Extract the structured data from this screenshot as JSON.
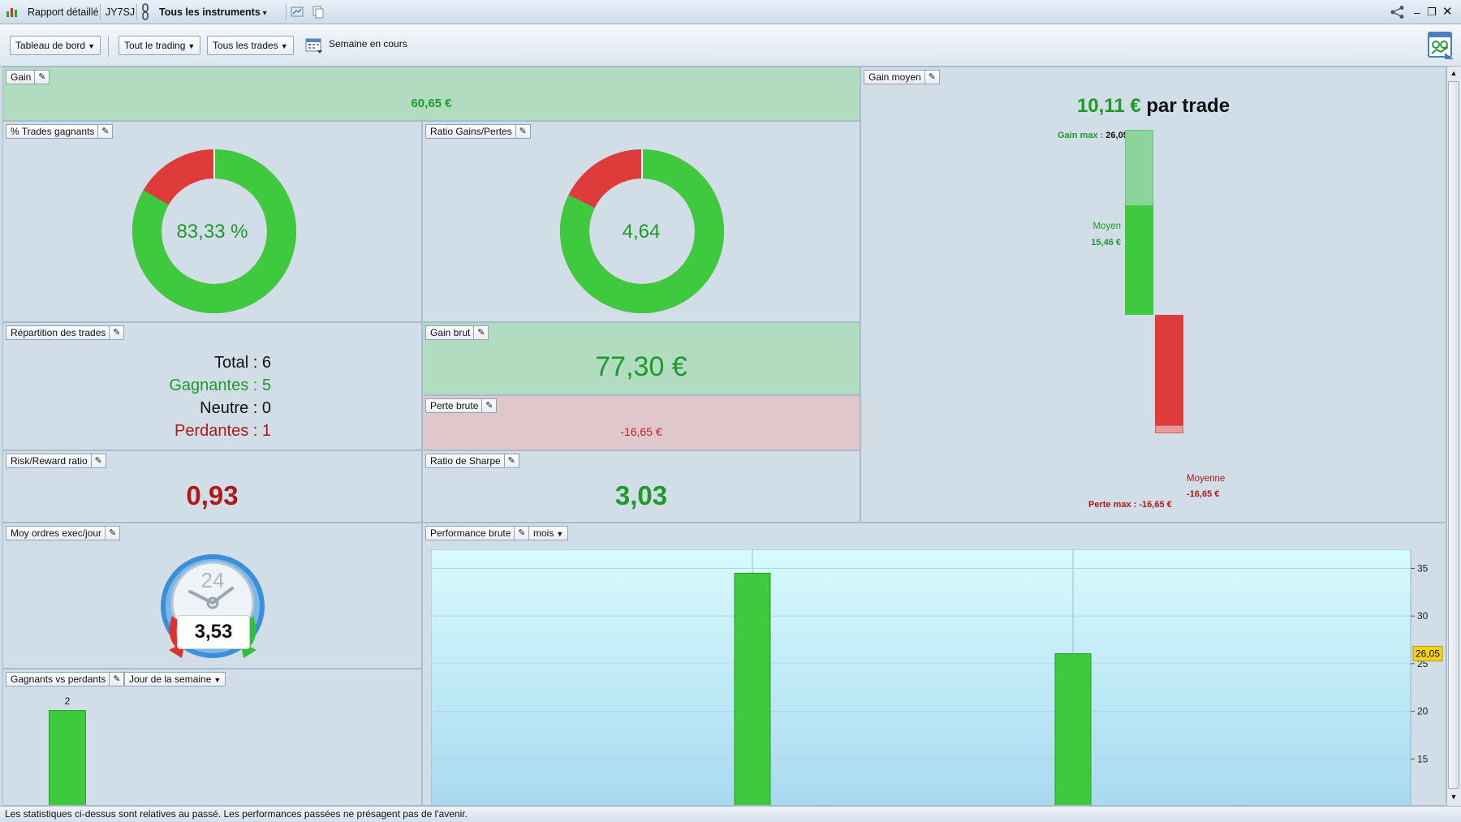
{
  "titlebar": {
    "report": "Rapport détaillé",
    "account": "JY7SJ",
    "instruments": "Tous les instruments"
  },
  "toolbar": {
    "dashboard": "Tableau de bord",
    "all_trading": "Tout le trading",
    "all_trades": "Tous les trades",
    "period": "Semaine en cours"
  },
  "gain": {
    "title": "Gain",
    "value": "60,65 €"
  },
  "win_pct": {
    "title": "% Trades gagnants",
    "value": "83,33 %",
    "fraction": 0.8333
  },
  "ratio": {
    "title": "Ratio Gains/Pertes",
    "value": "4,64",
    "fraction": 0.823
  },
  "avg_gain": {
    "title": "Gain moyen",
    "value": "10,11 €",
    "suffix": " par trade",
    "gain_max_label": "Gain max : ",
    "gain_max": "26,05 €",
    "avg_label": "Moyen",
    "avg_value": "15,46 €",
    "loss_avg_label": "Moyenne",
    "loss_avg_value": "-16,65 €",
    "loss_max_label": "Perte max : ",
    "loss_max": "-16,65 €",
    "gain_max_num": 26.05,
    "gain_avg_num": 15.46,
    "loss_avg_num": -16.65,
    "loss_max_num": -16.65
  },
  "repartition": {
    "title": "Répartition des trades",
    "total": "Total : 6",
    "winners": "Gagnantes : 5",
    "neutral": "Neutre : 0",
    "losers": "Perdantes : 1"
  },
  "gross_gain": {
    "title": "Gain brut",
    "value": "77,30 €"
  },
  "gross_loss": {
    "title": "Perte brute",
    "value": "-16,65 €"
  },
  "risk_reward": {
    "title": "Risk/Reward ratio",
    "value": "0,93"
  },
  "sharpe": {
    "title": "Ratio de Sharpe",
    "value": "3,03"
  },
  "orders": {
    "title": "Moy ordres exec/jour",
    "clock_label": "24",
    "value": "3,53"
  },
  "winners_losers": {
    "title": "Gagnants vs perdants",
    "dropdown": "Jour de la semaine",
    "bar_label": "2"
  },
  "performance": {
    "title": "Performance brute",
    "dropdown": "mois",
    "highlight": "26,05"
  },
  "status": "Les statistiques ci-dessus sont relatives au passé. Les performances passées ne présagent pas de l'avenir.",
  "chart_data": {
    "type": "bar",
    "series": [
      {
        "values": [
          34.5,
          26.05
        ]
      }
    ],
    "y_ticks": [
      15,
      20,
      25,
      30,
      35
    ],
    "ylim": [
      10,
      37
    ],
    "highlight_value": 26.05,
    "grid": true
  },
  "colors": {
    "green": "#3ec93e",
    "red": "#df3b3b",
    "dark_green": "#1e9a2a",
    "dark_red": "#b01818"
  }
}
